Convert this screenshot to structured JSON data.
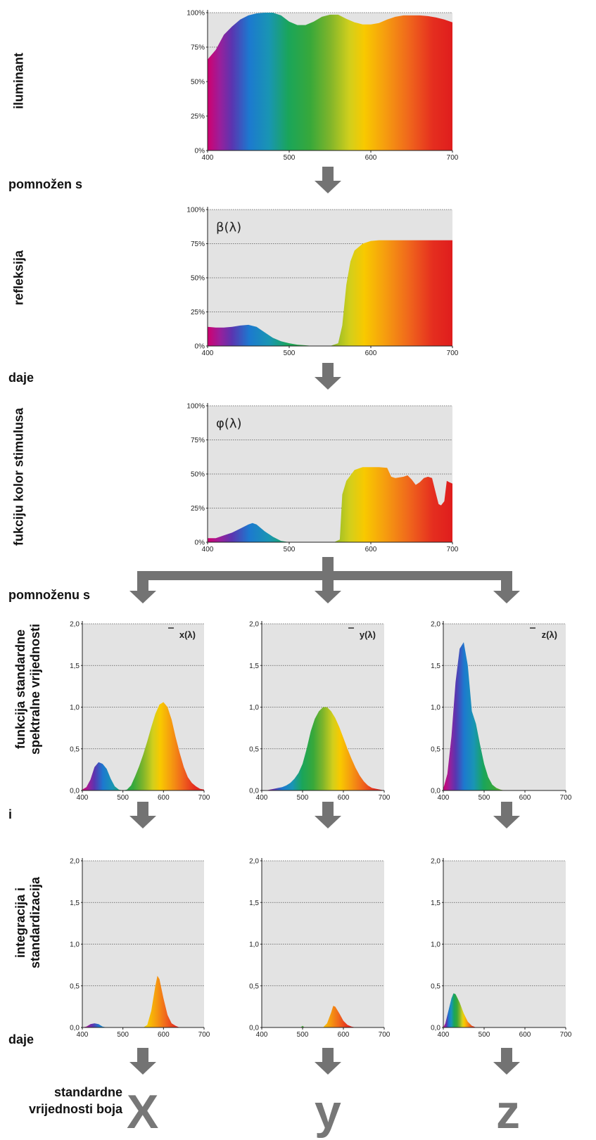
{
  "labels": {
    "illuminant": "iluminant",
    "times1": "pomnožen s",
    "reflection": "refleksija",
    "gives1": "daje",
    "stimulus": "fukciju kolor stimulusa",
    "times2": "pomnoženu s",
    "standard_line1": "funkcija standardne",
    "standard_line2": "spektralne vrijednosti",
    "and": "i",
    "integration_line1": "integracija i",
    "integration_line2": "standardizacija",
    "gives2": "daje",
    "values_line1": "standardne",
    "values_line2": "vrijednosti boja"
  },
  "results": [
    "X",
    "y",
    "z"
  ],
  "colors": {
    "panel_bg": "#e3e3e3",
    "arrow": "#737373",
    "grid": "#555555",
    "result_letter": "#777777"
  },
  "chart_data": [
    {
      "type": "area",
      "id": "illuminant",
      "x": [
        400,
        410,
        420,
        430,
        440,
        450,
        460,
        470,
        480,
        490,
        500,
        510,
        520,
        530,
        540,
        550,
        560,
        570,
        580,
        590,
        600,
        610,
        620,
        630,
        640,
        650,
        660,
        670,
        680,
        690,
        700
      ],
      "y": [
        0.66,
        0.73,
        0.84,
        0.9,
        0.95,
        0.98,
        0.995,
        1.0,
        1.0,
        0.98,
        0.935,
        0.91,
        0.91,
        0.935,
        0.97,
        0.985,
        0.985,
        0.955,
        0.93,
        0.915,
        0.915,
        0.925,
        0.95,
        0.97,
        0.98,
        0.98,
        0.98,
        0.975,
        0.965,
        0.95,
        0.93
      ],
      "ylim": [
        0,
        1
      ],
      "yticks": [
        "0%",
        "25%",
        "50%",
        "75%",
        "100%"
      ],
      "xticks": [
        "400",
        "500",
        "600",
        "700"
      ],
      "xlim": [
        400,
        700
      ],
      "label": ""
    },
    {
      "type": "area",
      "id": "reflection",
      "x": [
        400,
        410,
        420,
        430,
        440,
        450,
        460,
        470,
        480,
        490,
        500,
        510,
        520,
        530,
        540,
        550,
        560,
        565,
        570,
        575,
        580,
        590,
        600,
        610,
        620,
        630,
        640,
        650,
        660,
        670,
        680,
        690,
        700
      ],
      "y": [
        0.14,
        0.135,
        0.135,
        0.14,
        0.15,
        0.155,
        0.14,
        0.1,
        0.06,
        0.035,
        0.02,
        0.01,
        0.005,
        0.0,
        0.0,
        0.0,
        0.02,
        0.15,
        0.45,
        0.62,
        0.7,
        0.75,
        0.77,
        0.775,
        0.775,
        0.775,
        0.775,
        0.775,
        0.775,
        0.775,
        0.775,
        0.775,
        0.775
      ],
      "ylim": [
        0,
        1
      ],
      "yticks": [
        "0%",
        "25%",
        "50%",
        "75%",
        "100%"
      ],
      "xticks": [
        "400",
        "500",
        "600",
        "700"
      ],
      "xlim": [
        400,
        700
      ],
      "label": "β(λ)"
    },
    {
      "type": "area",
      "id": "stimulus",
      "x": [
        400,
        410,
        420,
        430,
        440,
        450,
        455,
        460,
        470,
        480,
        490,
        500,
        520,
        540,
        555,
        562,
        565,
        570,
        580,
        590,
        600,
        610,
        620,
        625,
        630,
        640,
        645,
        650,
        655,
        660,
        665,
        670,
        675,
        680,
        683,
        686,
        690,
        693,
        696,
        700
      ],
      "y": [
        0.03,
        0.03,
        0.05,
        0.07,
        0.1,
        0.13,
        0.14,
        0.13,
        0.08,
        0.04,
        0.01,
        0.0,
        0.0,
        0.0,
        0.0,
        0.02,
        0.35,
        0.45,
        0.53,
        0.55,
        0.55,
        0.55,
        0.545,
        0.48,
        0.47,
        0.48,
        0.49,
        0.46,
        0.42,
        0.44,
        0.47,
        0.48,
        0.47,
        0.35,
        0.28,
        0.27,
        0.3,
        0.45,
        0.44,
        0.43
      ],
      "ylim": [
        0,
        1
      ],
      "yticks": [
        "0%",
        "25%",
        "50%",
        "75%",
        "100%"
      ],
      "xticks": [
        "400",
        "500",
        "600",
        "700"
      ],
      "xlim": [
        400,
        700
      ],
      "label": "φ(λ)"
    },
    {
      "type": "area",
      "id": "xbar",
      "x": [
        400,
        410,
        420,
        430,
        440,
        450,
        460,
        470,
        480,
        490,
        500,
        510,
        520,
        530,
        540,
        550,
        560,
        570,
        580,
        590,
        600,
        610,
        620,
        630,
        640,
        650,
        660,
        670,
        680,
        690,
        700
      ],
      "y": [
        0.01,
        0.04,
        0.13,
        0.28,
        0.34,
        0.32,
        0.26,
        0.14,
        0.05,
        0.01,
        0.0,
        0.01,
        0.06,
        0.17,
        0.29,
        0.43,
        0.59,
        0.76,
        0.92,
        1.03,
        1.06,
        1.0,
        0.85,
        0.64,
        0.45,
        0.28,
        0.16,
        0.09,
        0.05,
        0.02,
        0.01
      ],
      "ylim": [
        0,
        2
      ],
      "yticks": [
        "0,0",
        "0,5",
        "1,0",
        "1,5",
        "2,0"
      ],
      "xticks": [
        "400",
        "500",
        "600",
        "700"
      ],
      "xlim": [
        400,
        700
      ],
      "label": "x(λ)"
    },
    {
      "type": "area",
      "id": "ybar",
      "x": [
        400,
        410,
        420,
        430,
        440,
        450,
        460,
        470,
        480,
        490,
        500,
        510,
        520,
        530,
        540,
        550,
        560,
        570,
        580,
        590,
        600,
        610,
        620,
        630,
        640,
        650,
        660,
        670,
        680,
        690,
        700
      ],
      "y": [
        0.0,
        0.0,
        0.01,
        0.02,
        0.03,
        0.04,
        0.06,
        0.09,
        0.14,
        0.21,
        0.32,
        0.5,
        0.71,
        0.86,
        0.95,
        1.0,
        1.0,
        0.95,
        0.87,
        0.76,
        0.63,
        0.5,
        0.38,
        0.27,
        0.18,
        0.11,
        0.06,
        0.03,
        0.02,
        0.01,
        0.0
      ],
      "ylim": [
        0,
        2
      ],
      "yticks": [
        "0,0",
        "0,5",
        "1,0",
        "1,5",
        "2,0"
      ],
      "xticks": [
        "400",
        "500",
        "600",
        "700"
      ],
      "xlim": [
        400,
        700
      ],
      "label": "y(λ)"
    },
    {
      "type": "area",
      "id": "zbar",
      "x": [
        400,
        410,
        420,
        430,
        440,
        450,
        460,
        470,
        480,
        490,
        500,
        510,
        520,
        530,
        540,
        550,
        560,
        570,
        580,
        590,
        600,
        610,
        620,
        630,
        640,
        650,
        660,
        670,
        680,
        690,
        700
      ],
      "y": [
        0.02,
        0.2,
        0.65,
        1.3,
        1.7,
        1.78,
        1.5,
        0.95,
        0.8,
        0.55,
        0.32,
        0.16,
        0.07,
        0.03,
        0.01,
        0.0,
        0.0,
        0.0,
        0.0,
        0.0,
        0.0,
        0.0,
        0.0,
        0.0,
        0.0,
        0.0,
        0.0,
        0.0,
        0.0,
        0.0,
        0.0
      ],
      "ylim": [
        0,
        2
      ],
      "yticks": [
        "0,0",
        "0,5",
        "1,0",
        "1,5",
        "2,0"
      ],
      "xticks": [
        "400",
        "500",
        "600",
        "700"
      ],
      "xlim": [
        400,
        700
      ],
      "label": "z(λ)"
    },
    {
      "type": "area",
      "id": "Xint",
      "x": [
        400,
        410,
        420,
        430,
        440,
        450,
        460,
        550,
        560,
        570,
        580,
        585,
        590,
        600,
        610,
        620,
        630,
        640,
        650
      ],
      "y": [
        0.0,
        0.01,
        0.04,
        0.05,
        0.04,
        0.01,
        0.0,
        0.0,
        0.03,
        0.2,
        0.5,
        0.62,
        0.58,
        0.35,
        0.15,
        0.05,
        0.02,
        0.0,
        0.0
      ],
      "ylim": [
        0,
        2
      ],
      "yticks": [
        "0,0",
        "0,5",
        "1,0",
        "1,5",
        "2,0"
      ],
      "xticks": [
        "400",
        "500",
        "600",
        "700"
      ],
      "xlim": [
        400,
        700
      ],
      "label": ""
    },
    {
      "type": "area",
      "id": "Yint",
      "x": [
        400,
        495,
        500,
        505,
        550,
        560,
        570,
        575,
        580,
        590,
        600,
        610,
        620,
        630
      ],
      "y": [
        0.0,
        0.0,
        0.02,
        0.0,
        0.0,
        0.05,
        0.18,
        0.26,
        0.25,
        0.17,
        0.08,
        0.03,
        0.01,
        0.0
      ],
      "ylim": [
        0,
        2
      ],
      "yticks": [
        "0,0",
        "0,5",
        "1,0",
        "1,5",
        "2,0"
      ],
      "xticks": [
        "400",
        "500",
        "600",
        "700"
      ],
      "xlim": [
        400,
        700
      ],
      "label": ""
    },
    {
      "type": "area",
      "id": "Zint",
      "x": [
        400,
        405,
        410,
        420,
        425,
        430,
        440,
        450,
        460,
        470,
        475,
        480
      ],
      "y": [
        0.0,
        0.05,
        0.15,
        0.35,
        0.41,
        0.4,
        0.3,
        0.17,
        0.07,
        0.02,
        0.01,
        0.0
      ],
      "ylim": [
        0,
        2
      ],
      "yticks": [
        "0,0",
        "0,5",
        "1,0",
        "1,5",
        "2,0"
      ],
      "xticks": [
        "400",
        "500",
        "600",
        "700"
      ],
      "xlim": [
        400,
        700
      ],
      "label": ""
    }
  ]
}
